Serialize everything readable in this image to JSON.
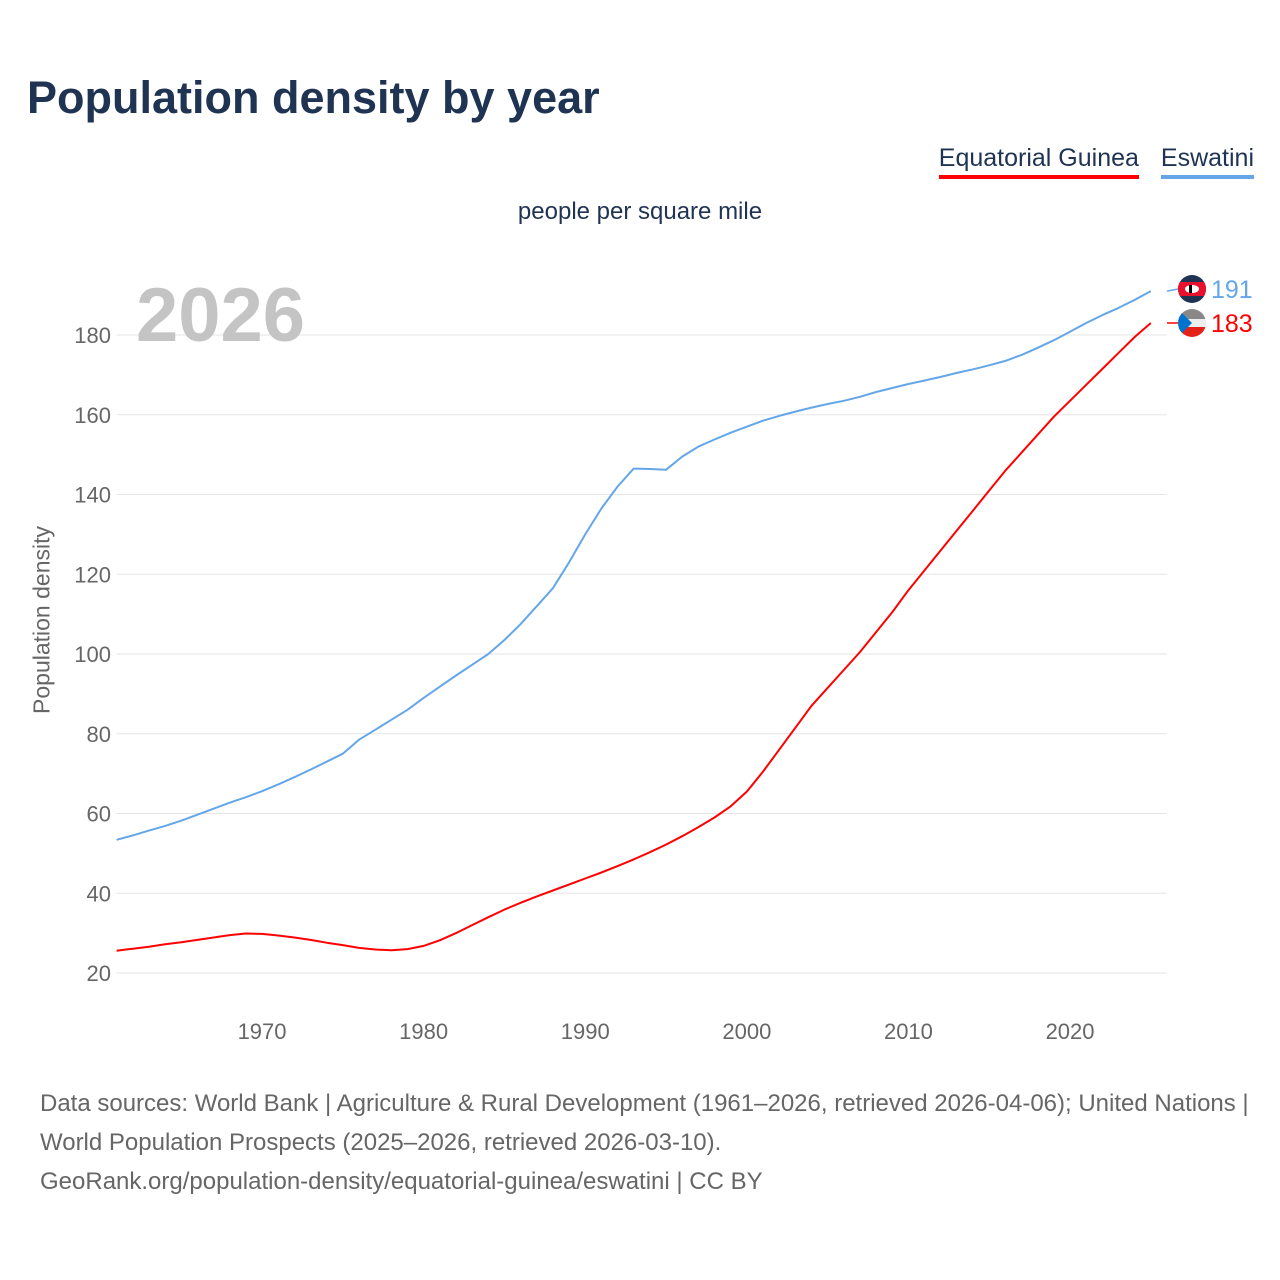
{
  "title": "Population density by year",
  "subtitle": "people per square mile",
  "current_year": "2026",
  "footer": {
    "line1": "Data sources: World Bank | Agriculture & Rural Development (1961–2026, retrieved 2026-04-06); United Nations | World Population Prospects (2025–2026, retrieved 2026-03-10).",
    "line2": "GeoRank.org/population-density/equatorial-guinea/eswatini | CC BY"
  },
  "chart_data": {
    "type": "line",
    "title": "Population density by year",
    "xlabel": "",
    "ylabel": "Population density",
    "xlim": [
      1961,
      2026
    ],
    "ylim": [
      10,
      195
    ],
    "yticks": [
      20,
      40,
      60,
      80,
      100,
      120,
      140,
      160,
      180
    ],
    "xticks": [
      1970,
      1980,
      1990,
      2000,
      2010,
      2020
    ],
    "grid": true,
    "legend": "top-right",
    "x_start": 1961,
    "series": [
      {
        "name": "Equatorial Guinea",
        "color": "#ff0000",
        "end_label": "183",
        "flag": "equatorial-guinea-flag-icon",
        "values": [
          25.6,
          26.1,
          26.6,
          27.2,
          27.7,
          28.3,
          28.9,
          29.5,
          29.9,
          29.8,
          29.4,
          28.9,
          28.3,
          27.6,
          27.0,
          26.3,
          25.9,
          25.7,
          26.0,
          26.8,
          28.2,
          30.0,
          32.0,
          34.0,
          35.9,
          37.6,
          39.2,
          40.7,
          42.2,
          43.7,
          45.2,
          46.8,
          48.5,
          50.3,
          52.2,
          54.3,
          56.6,
          59.0,
          61.8,
          65.5,
          70.5,
          76.0,
          81.5,
          87.0,
          91.5,
          96.0,
          100.5,
          105.5,
          110.5,
          116.0,
          121.0,
          126.0,
          131.0,
          136.0,
          141.0,
          146.0,
          150.5,
          155.0,
          159.5,
          163.5,
          167.5,
          171.5,
          175.5,
          179.5,
          183.0
        ]
      },
      {
        "name": "Eswatini",
        "color": "#64a6e8",
        "end_label": "191",
        "flag": "eswatini-flag-icon",
        "values": [
          53.4,
          54.5,
          55.7,
          56.9,
          58.2,
          59.7,
          61.2,
          62.7,
          64.1,
          65.6,
          67.3,
          69.1,
          71.0,
          73.0,
          75.0,
          78.5,
          81.0,
          83.5,
          86.0,
          89.0,
          91.8,
          94.6,
          97.3,
          100.0,
          103.5,
          107.5,
          112.0,
          116.5,
          123.0,
          130.0,
          136.5,
          142.0,
          146.5,
          146.4,
          146.2,
          149.5,
          152.0,
          153.8,
          155.5,
          157.0,
          158.5,
          159.7,
          160.8,
          161.8,
          162.7,
          163.5,
          164.5,
          165.7,
          166.7,
          167.7,
          168.6,
          169.5,
          170.5,
          171.4,
          172.4,
          173.5,
          175.0,
          176.8,
          178.7,
          180.8,
          183.0,
          185.0,
          186.8,
          188.8,
          191.0
        ]
      }
    ]
  }
}
